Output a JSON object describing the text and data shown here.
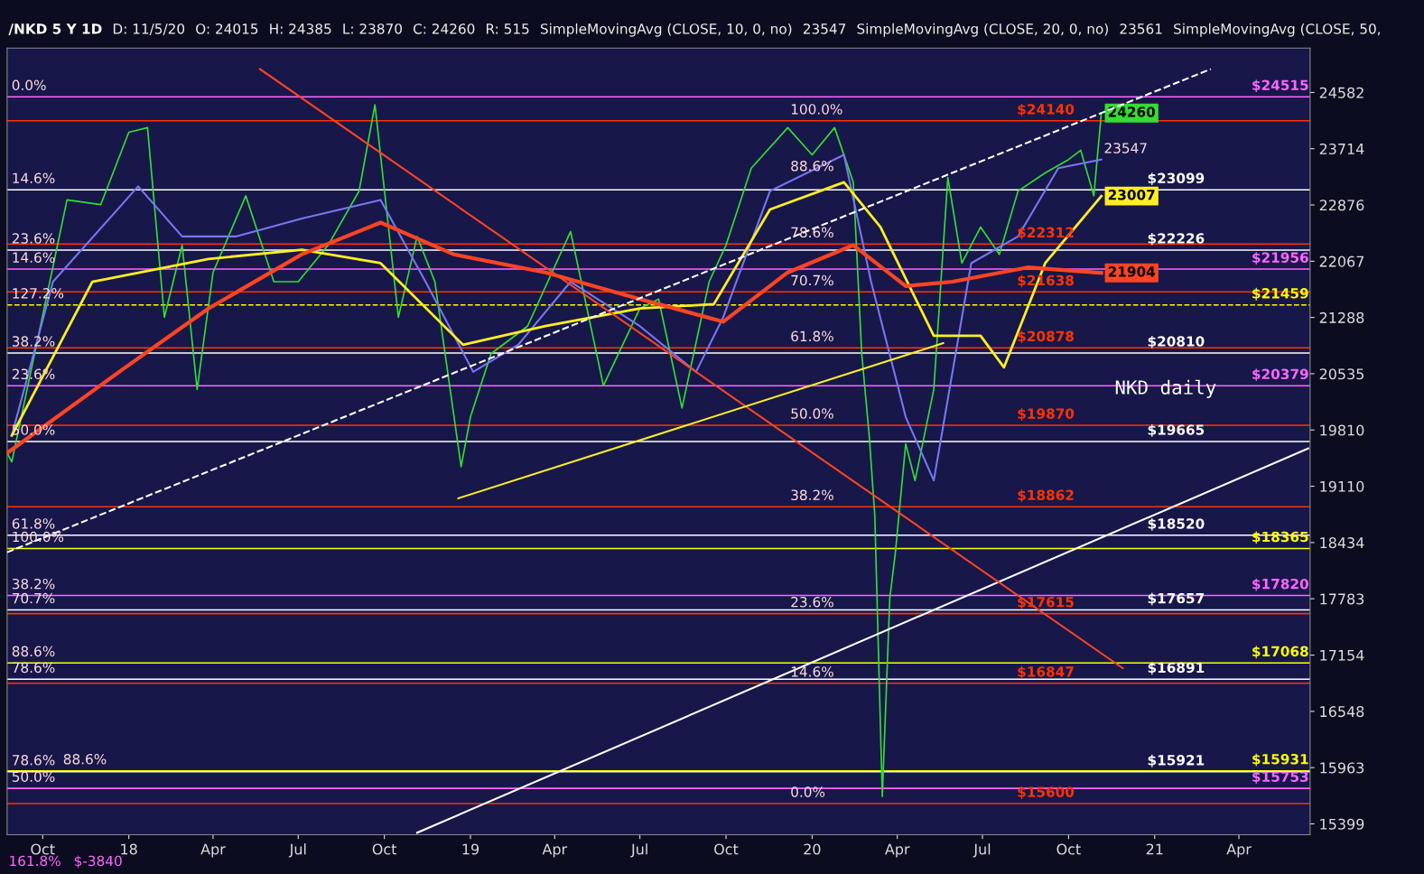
{
  "chart_data": {
    "type": "line",
    "title": "/NKD 5 Y 1D",
    "subtitle": "NKD daily",
    "log": "y",
    "grid": false,
    "legend": false,
    "xlim": [
      "2017-08-24",
      "2021-06-16"
    ],
    "xticks": [
      {
        "value": "2017-10-01",
        "label": "Oct"
      },
      {
        "value": "2018-01-01",
        "label": "18"
      },
      {
        "value": "2018-04-01",
        "label": "Apr"
      },
      {
        "value": "2018-07-01",
        "label": "Jul"
      },
      {
        "value": "2018-10-01",
        "label": "Oct"
      },
      {
        "value": "2019-01-01",
        "label": "19"
      },
      {
        "value": "2019-04-01",
        "label": "Apr"
      },
      {
        "value": "2019-07-01",
        "label": "Jul"
      },
      {
        "value": "2019-10-01",
        "label": "Oct"
      },
      {
        "value": "2020-01-01",
        "label": "20"
      },
      {
        "value": "2020-04-01",
        "label": "Apr"
      },
      {
        "value": "2020-07-01",
        "label": "Jul"
      },
      {
        "value": "2020-10-01",
        "label": "Oct"
      },
      {
        "value": "2021-01-01",
        "label": "21"
      },
      {
        "value": "2021-04-01",
        "label": "Apr"
      }
    ],
    "ylim": [
      15293,
      25290
    ],
    "yticks": [
      15399,
      15963,
      16548,
      17154,
      17783,
      18434,
      19110,
      19810,
      20535,
      21288,
      22067,
      22876,
      23714,
      24582
    ],
    "series": [
      {
        "color": "#33dd33",
        "x": [
          "2017-08-24",
          "2017-08-29",
          "2017-10-27",
          "2017-12-02",
          "2018-01-01",
          "2018-01-21",
          "2018-02-08",
          "2018-02-27",
          "2018-03-15",
          "2018-04-01",
          "2018-05-06",
          "2018-06-05",
          "2018-07-01",
          "2018-08-02",
          "2018-09-04",
          "2018-09-21",
          "2018-10-16",
          "2018-11-05",
          "2018-11-24",
          "2018-12-22",
          "2019-01-01",
          "2019-01-23",
          "2019-03-03",
          "2019-04-18",
          "2019-05-23",
          "2019-07-01",
          "2019-07-21",
          "2019-08-15",
          "2019-09-13",
          "2019-10-01",
          "2019-10-28",
          "2019-12-06",
          "2020-01-01",
          "2020-01-25",
          "2020-02-14",
          "2020-02-23",
          "2020-03-02",
          "2020-03-08",
          "2020-03-16",
          "2020-03-24",
          "2020-03-30",
          "2020-04-10",
          "2020-04-20",
          "2020-05-10",
          "2020-05-25",
          "2020-06-09",
          "2020-06-29",
          "2020-07-19",
          "2020-08-08",
          "2020-09-06",
          "2020-10-01",
          "2020-10-14",
          "2020-10-28",
          "2020-11-05"
        ],
        "values": [
          19520,
          19410,
          22950,
          22880,
          23965,
          24035,
          21290,
          22295,
          20330,
          21910,
          23010,
          21780,
          21780,
          22295,
          23080,
          24390,
          21290,
          22420,
          21780,
          19350,
          19975,
          20800,
          21170,
          22490,
          20380,
          21410,
          21540,
          20090,
          21780,
          22295,
          23420,
          24035,
          23620,
          24035,
          23210,
          20800,
          19740,
          18750,
          15670,
          17790,
          18320,
          19635,
          19180,
          20330,
          23280,
          22040,
          22555,
          22165,
          23080,
          23350,
          23550,
          23690,
          23010,
          24260
        ],
        "value_labels": [
          null,
          null,
          null,
          null,
          null,
          null,
          null,
          null,
          null,
          null,
          null,
          null,
          null,
          null,
          null,
          null,
          null,
          null,
          null,
          null,
          null,
          null,
          null,
          null,
          null,
          null,
          null,
          null,
          null,
          null,
          null,
          null,
          null,
          null,
          null,
          null,
          null,
          null,
          null,
          null,
          null,
          null,
          null,
          null,
          null,
          null,
          null,
          null,
          null,
          null,
          null,
          null,
          null,
          "24260"
        ]
      },
      {
        "color": "#7777ee",
        "x": [
          "2017-08-29",
          "2017-10-12",
          "2018-01-11",
          "2018-02-27",
          "2018-04-26",
          "2018-07-05",
          "2018-09-27",
          "2018-11-14",
          "2019-01-04",
          "2019-02-21",
          "2019-04-18",
          "2019-07-01",
          "2019-08-30",
          "2019-09-28",
          "2019-11-17",
          "2020-02-04",
          "2020-03-04",
          "2020-04-10",
          "2020-05-10",
          "2020-06-19",
          "2020-08-08",
          "2020-09-20",
          "2020-11-05"
        ],
        "values": [
          19740,
          21780,
          23150,
          22420,
          22420,
          22680,
          22950,
          21780,
          20560,
          20920,
          21780,
          21170,
          20560,
          21290,
          23080,
          23620,
          21780,
          19975,
          19180,
          22040,
          22420,
          23420,
          23550
        ]
      },
      {
        "color": "#ffee22",
        "x": [
          "2017-08-29",
          "2017-11-23",
          "2018-03-27",
          "2018-07-05",
          "2018-09-27",
          "2018-12-24",
          "2019-03-22",
          "2019-07-01",
          "2019-09-18",
          "2019-11-17",
          "2020-02-04",
          "2020-03-14",
          "2020-05-10",
          "2020-06-29",
          "2020-07-24",
          "2020-09-06",
          "2020-11-05"
        ],
        "values": [
          19740,
          21780,
          22100,
          22230,
          22040,
          20920,
          21170,
          21410,
          21470,
          22810,
          23210,
          22555,
          21040,
          21040,
          20620,
          22040,
          23007
        ],
        "value_labels": [
          null,
          null,
          null,
          null,
          null,
          null,
          null,
          null,
          null,
          null,
          null,
          null,
          null,
          null,
          null,
          null,
          "23007"
        ]
      },
      {
        "color": "#ff4422",
        "x": [
          "2017-08-24",
          "2017-12-22",
          "2018-03-27",
          "2018-07-05",
          "2018-09-27",
          "2018-12-14",
          "2019-03-22",
          "2019-07-01",
          "2019-09-28",
          "2019-12-06",
          "2020-02-14",
          "2020-04-10",
          "2020-05-30",
          "2020-08-18",
          "2020-11-05"
        ],
        "values": [
          19520,
          20563,
          21410,
          22165,
          22620,
          22165,
          21910,
          21540,
          21230,
          21910,
          22295,
          21720,
          21780,
          21980,
          21904
        ],
        "value_labels": [
          null,
          null,
          null,
          null,
          null,
          null,
          null,
          null,
          null,
          null,
          null,
          null,
          null,
          null,
          "21904"
        ]
      },
      {
        "color": "#ffffff",
        "line_style": "dashed",
        "x": [
          "2017-08-24",
          "2021-03-02"
        ],
        "values": [
          18320,
          24953
        ]
      },
      {
        "color": "#ffffff",
        "x": [
          "2018-11-05",
          "2021-06-14"
        ],
        "values": [
          15312,
          19577
        ]
      },
      {
        "color": "#ff4422",
        "x": [
          "2018-05-21",
          "2020-11-28"
        ],
        "values": [
          24953,
          17010
        ]
      },
      {
        "color": "#ffee22",
        "x": [
          "2018-12-19",
          "2020-05-20"
        ],
        "values": [
          18963,
          20940
        ]
      }
    ],
    "ref_lines": [
      {
        "axis": "y",
        "value": 24515,
        "label": "$24515",
        "color": "#ff66ff"
      },
      {
        "axis": "y",
        "value": 24140,
        "label": "$24140",
        "color": "#ff3300"
      },
      {
        "axis": "y",
        "value": 23099,
        "label": "$23099",
        "color": "#ffffff"
      },
      {
        "axis": "y",
        "value": 22312,
        "label": "$22312",
        "color": "#ff3300"
      },
      {
        "axis": "y",
        "value": 22226,
        "label": "$22226",
        "color": "#ffffff"
      },
      {
        "axis": "y",
        "value": 21956,
        "label": "$21956",
        "color": "#ff66ff"
      },
      {
        "axis": "y",
        "value": 21638,
        "label": "$21638",
        "color": "#ff3300"
      },
      {
        "axis": "y",
        "value": 21459,
        "label": "$21459",
        "color": "#ffff00",
        "line_style": "dashed"
      },
      {
        "axis": "y",
        "value": 20878,
        "label": "$20878",
        "color": "#ff3300"
      },
      {
        "axis": "y",
        "value": 20810,
        "label": "$20810",
        "color": "#ffffff"
      },
      {
        "axis": "y",
        "value": 20379,
        "label": "$20379",
        "color": "#ff66ff"
      },
      {
        "axis": "y",
        "value": 19870,
        "label": "$19870",
        "color": "#ff3300"
      },
      {
        "axis": "y",
        "value": 19665,
        "label": "$19665",
        "color": "#ffffff"
      },
      {
        "axis": "y",
        "value": 18862,
        "label": "$18862",
        "color": "#ff3300"
      },
      {
        "axis": "y",
        "value": 18520,
        "label": "$18520",
        "color": "#ffffff"
      },
      {
        "axis": "y",
        "value": 18365,
        "label": "$18365",
        "color": "#ffff00"
      },
      {
        "axis": "y",
        "value": 17820,
        "label": "$17820",
        "color": "#ff66ff"
      },
      {
        "axis": "y",
        "value": 17657,
        "label": "$17657",
        "color": "#ffffff"
      },
      {
        "axis": "y",
        "value": 17615,
        "label": "$17615",
        "color": "#ff3300"
      },
      {
        "axis": "y",
        "value": 17068,
        "label": "$17068",
        "color": "#ffff00"
      },
      {
        "axis": "y",
        "value": 16891,
        "label": "$16891",
        "color": "#ffffff"
      },
      {
        "axis": "y",
        "value": 16847,
        "label": "$16847",
        "color": "#ff3300"
      },
      {
        "axis": "y",
        "value": 15931,
        "label": "$15931",
        "color": "#ffff00"
      },
      {
        "axis": "y",
        "value": 15921,
        "label": "$15921",
        "color": "#ffffff"
      },
      {
        "axis": "y",
        "value": 15753,
        "label": "$15753",
        "color": "#ff66ff"
      },
      {
        "axis": "y",
        "value": 15600,
        "label": "$15600",
        "color": "#ff3300"
      }
    ],
    "annotations": [
      "D: 11/5/20",
      "O: 24015",
      "H: 24385",
      "L: 23870",
      "C: 24260",
      "R: 515",
      "SimpleMovingAvg (CLOSE, 10, 0, no)",
      "23547",
      "SimpleMovingAvg (CLOSE, 20, 0, no)",
      "23561",
      "SimpleMovingAvg (CLOSE, 50,",
      "161.8%",
      "$-3840",
      {
        "text": "23547",
        "x": "2020-11-05",
        "y": 23547
      },
      {
        "text": "0.0%",
        "x": "2017-08-26",
        "y": 24515
      },
      {
        "text": "14.6%",
        "x": "2017-08-26",
        "y": 23099
      },
      {
        "text": "23.6%",
        "x": "2017-08-26",
        "y": 22226
      },
      {
        "text": "14.6%",
        "x": "2017-08-26",
        "y": 21956
      },
      {
        "text": "127.2%",
        "x": "2017-08-26",
        "y": 21459
      },
      {
        "text": "38.2%",
        "x": "2017-08-26",
        "y": 20810
      },
      {
        "text": "23.6%",
        "x": "2017-08-26",
        "y": 20379
      },
      {
        "text": "50.0%",
        "x": "2017-08-26",
        "y": 19665
      },
      {
        "text": "61.8%",
        "x": "2017-08-26",
        "y": 18520
      },
      {
        "text": "100.0%",
        "x": "2017-08-26",
        "y": 18365
      },
      {
        "text": "38.2%",
        "x": "2017-08-26",
        "y": 17820
      },
      {
        "text": "70.7%",
        "x": "2017-08-26",
        "y": 17657
      },
      {
        "text": "88.6%",
        "x": "2017-08-26",
        "y": 17068
      },
      {
        "text": "78.6%",
        "x": "2017-08-26",
        "y": 16891
      },
      {
        "text": "78.6%",
        "x": "2017-08-26",
        "y": 15921
      },
      {
        "text": "88.6%",
        "x": "2017-10-20",
        "y": 15931
      },
      {
        "text": "50.0%",
        "x": "2017-08-26",
        "y": 15753
      },
      {
        "text": "100.0%",
        "x": "2019-12-06",
        "y": 24140
      },
      {
        "text": "88.6%",
        "x": "2019-12-06",
        "y": 23280
      },
      {
        "text": "78.6%",
        "x": "2019-12-06",
        "y": 22312
      },
      {
        "text": "70.7%",
        "x": "2019-12-06",
        "y": 21638
      },
      {
        "text": "61.8%",
        "x": "2019-12-06",
        "y": 20878
      },
      {
        "text": "50.0%",
        "x": "2019-12-06",
        "y": 19870
      },
      {
        "text": "38.2%",
        "x": "2019-12-06",
        "y": 18862
      },
      {
        "text": "23.6%",
        "x": "2019-12-06",
        "y": 17615
      },
      {
        "text": "14.6%",
        "x": "2019-12-06",
        "y": 16847
      },
      {
        "text": "0.0%",
        "x": "2019-12-06",
        "y": 15600
      }
    ]
  }
}
